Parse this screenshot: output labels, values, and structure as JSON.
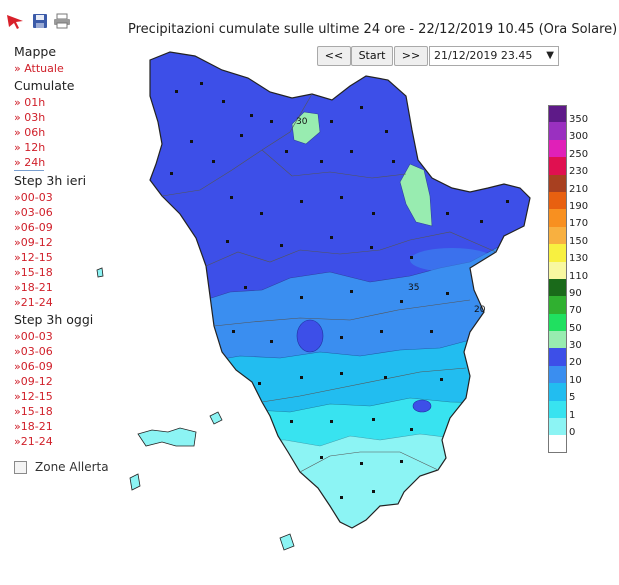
{
  "toolbar": {
    "icons": [
      "red-arrow-icon",
      "save-icon",
      "print-icon"
    ]
  },
  "title": "Precipitazioni cumulate sulle ultime 24 ore - 22/12/2019 10.45 (Ora Solare)",
  "nav": {
    "prev_label": "<<",
    "start_label": "Start",
    "next_label": ">>",
    "selected_time": "21/12/2019 23.45",
    "caret": "▼"
  },
  "menu": {
    "mappe_label": "Mappe",
    "attuale_label": "» Attuale",
    "cumulate_label": "Cumulate",
    "cumulate_items": [
      "» 01h",
      "» 03h",
      "» 06h",
      "» 12h",
      "» 24h"
    ],
    "step_ieri_label": "Step 3h ieri",
    "step_ieri_items": [
      "»00-03",
      "»03-06",
      "»06-09",
      "»09-12",
      "»12-15",
      "»15-18",
      "»18-21",
      "»21-24"
    ],
    "step_oggi_label": "Step 3h oggi",
    "step_oggi_items": [
      "»00-03",
      "»03-06",
      "»06-09",
      "»09-12",
      "»12-15",
      "»15-18",
      "»18-21",
      "»21-24"
    ],
    "zone_label": "Zone Allerta"
  },
  "map": {
    "contour_labels": [
      "35",
      "30",
      "20"
    ],
    "colors": {
      "c30": "#3d4fe8",
      "c20": "#3a8ef0",
      "c10": "#22bdf0",
      "c5": "#38e3f0",
      "c1": "#8cf4f4",
      "c50": "#98ecb0"
    }
  },
  "legend": {
    "items": [
      {
        "label": "350",
        "color": "#5e1a88"
      },
      {
        "label": "300",
        "color": "#9a30c0"
      },
      {
        "label": "250",
        "color": "#e020b8"
      },
      {
        "label": "230",
        "color": "#e01050"
      },
      {
        "label": "210",
        "color": "#a84020"
      },
      {
        "label": "190",
        "color": "#e86010"
      },
      {
        "label": "170",
        "color": "#f89020"
      },
      {
        "label": "150",
        "color": "#f8b040"
      },
      {
        "label": "130",
        "color": "#f8f040"
      },
      {
        "label": "110",
        "color": "#f8f8a0"
      },
      {
        "label": "90",
        "color": "#1a6a1a"
      },
      {
        "label": "70",
        "color": "#30b030"
      },
      {
        "label": "50",
        "color": "#20e060"
      },
      {
        "label": "30",
        "color": "#98ecb0"
      },
      {
        "label": "20",
        "color": "#3d4fe8"
      },
      {
        "label": "10",
        "color": "#3a8ef0"
      },
      {
        "label": "5",
        "color": "#22bdf0"
      },
      {
        "label": "1",
        "color": "#38e3f0"
      },
      {
        "label": "0",
        "color": "#8cf4f4"
      },
      {
        "label": "",
        "color": "#ffffff"
      }
    ]
  }
}
